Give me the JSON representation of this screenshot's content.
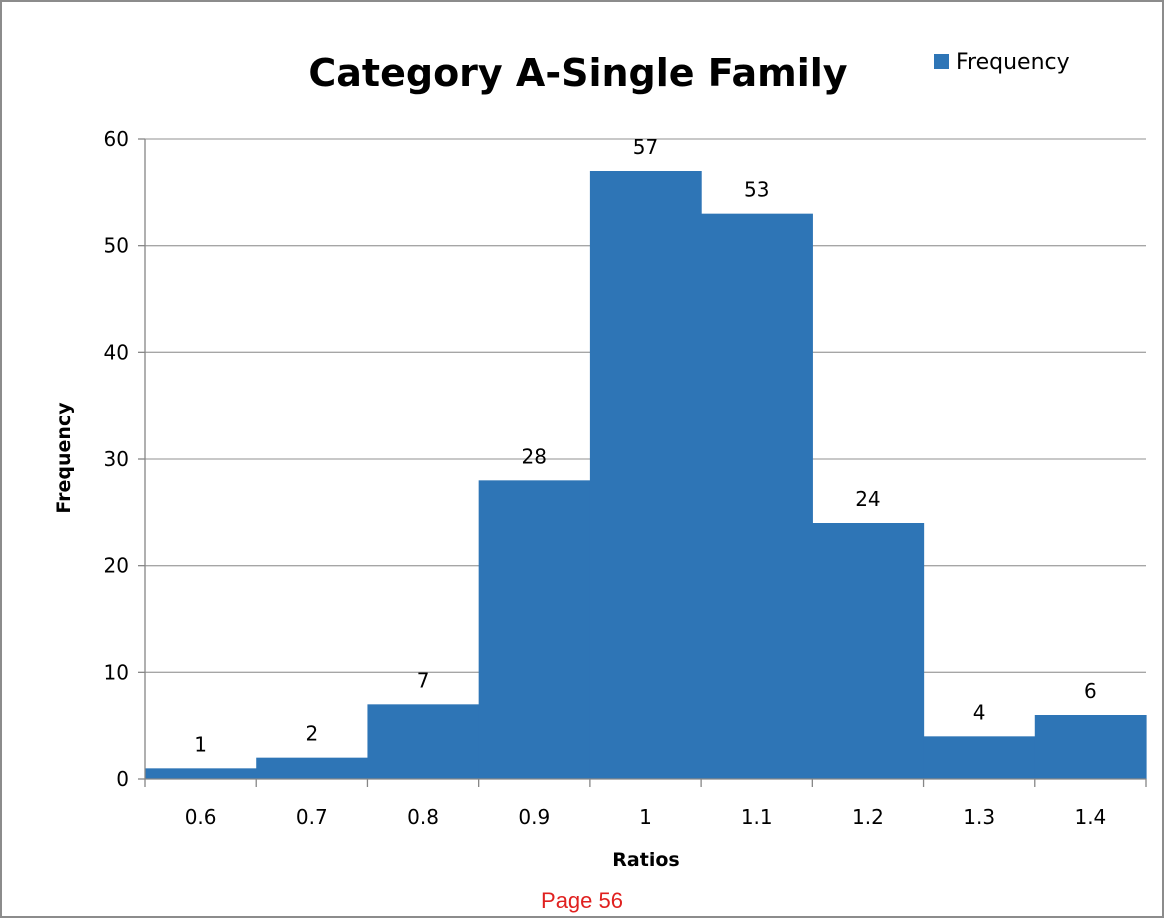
{
  "chart_data": {
    "type": "bar",
    "title": "Category A-Single Family",
    "xlabel": "Ratios",
    "ylabel": "Frequency",
    "categories": [
      "0.6",
      "0.7",
      "0.8",
      "0.9",
      "1",
      "1.1",
      "1.2",
      "1.3",
      "1.4"
    ],
    "series": [
      {
        "name": "Frequency",
        "values": [
          1,
          2,
          7,
          28,
          57,
          53,
          24,
          4,
          6
        ],
        "color": "#2e75b6"
      }
    ],
    "ylim": [
      0,
      60
    ],
    "yticks": [
      "0",
      "10",
      "20",
      "30",
      "40",
      "50",
      "60"
    ],
    "grid": true,
    "legend_position": "top-right",
    "data_labels": true
  },
  "footer": {
    "page_label": "Page 56"
  }
}
